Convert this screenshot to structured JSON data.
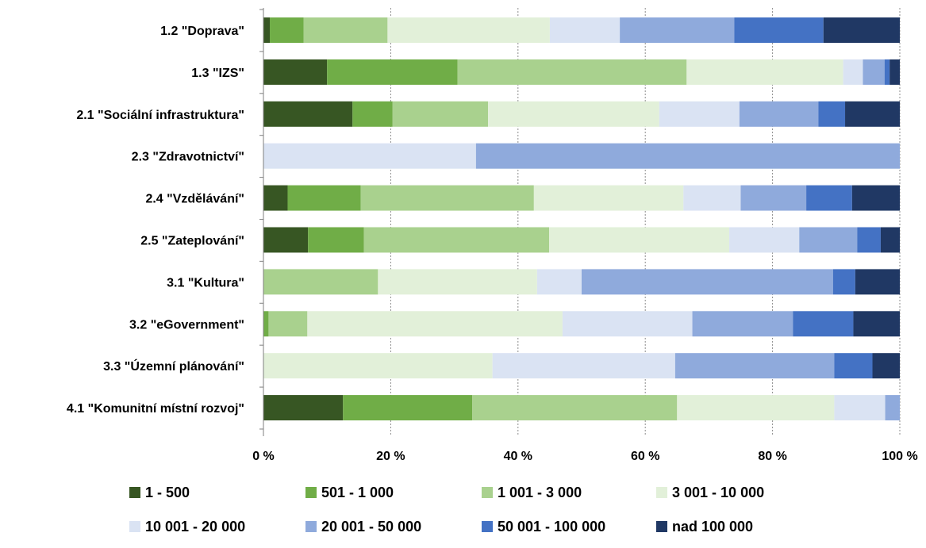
{
  "chart_data": {
    "type": "bar",
    "orientation": "horizontal",
    "stacked": "percent",
    "categories": [
      "1.2 \"Doprava\"",
      "1.3 \"IZS\"",
      "2.1 \"Sociální infrastruktura\"",
      "2.3 \"Zdravotnictví\"",
      "2.4 \"Vzdělávání\"",
      "2.5 \"Zateplování\"",
      "3.1 \"Kultura\"",
      "3.2 \"eGovernment\"",
      "3.3 \"Územní plánování\"",
      "4.1 \"Komunitní místní rozvoj\""
    ],
    "series": [
      {
        "name": "1 - 500",
        "color": "#375623",
        "values": [
          1.0,
          10.0,
          14.0,
          0.0,
          3.8,
          7.0,
          0.0,
          0.0,
          0.0,
          12.5
        ]
      },
      {
        "name": "501 - 1 000",
        "color": "#70AD47",
        "values": [
          5.3,
          20.5,
          6.3,
          0.0,
          11.5,
          8.8,
          0.0,
          0.8,
          0.0,
          20.3
        ]
      },
      {
        "name": "1 001 - 3 000",
        "color": "#A9D18E",
        "values": [
          13.2,
          36.0,
          15.0,
          0.0,
          27.2,
          29.1,
          18.0,
          6.1,
          0.0,
          32.2
        ]
      },
      {
        "name": "3 001 - 10 000",
        "color": "#E2F0D9",
        "values": [
          25.5,
          24.6,
          26.9,
          0.0,
          23.5,
          28.3,
          25.0,
          40.1,
          36.0,
          24.7
        ]
      },
      {
        "name": "10 001 - 20 000",
        "color": "#DAE3F3",
        "values": [
          11.0,
          3.1,
          12.6,
          33.4,
          9.0,
          11.0,
          7.0,
          20.4,
          28.7,
          8.0
        ]
      },
      {
        "name": "20 001 - 50 000",
        "color": "#8FAADC",
        "values": [
          18.0,
          3.4,
          12.4,
          66.6,
          10.3,
          9.1,
          39.5,
          15.8,
          25.0,
          2.3
        ]
      },
      {
        "name": "50 001 - 100 000",
        "color": "#4472C4",
        "values": [
          14.0,
          0.8,
          4.2,
          0.0,
          7.2,
          3.7,
          3.5,
          9.5,
          6.0,
          0.0
        ]
      },
      {
        "name": "nad 100 000",
        "color": "#203864",
        "values": [
          12.0,
          1.6,
          8.6,
          0.0,
          7.5,
          3.0,
          7.0,
          7.3,
          4.3,
          0.0
        ]
      }
    ],
    "xlim": [
      0,
      100
    ],
    "xticks": [
      "0 %",
      "20 %",
      "40 %",
      "60 %",
      "80 %",
      "100 %"
    ],
    "grid": "vertical dotted",
    "legend": "bottom"
  }
}
